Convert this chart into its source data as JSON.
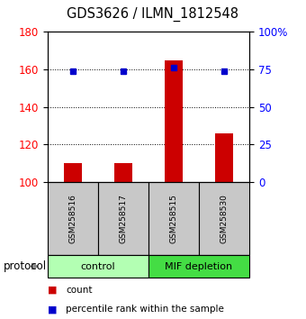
{
  "title": "GDS3626 / ILMN_1812548",
  "samples": [
    "GSM258516",
    "GSM258517",
    "GSM258515",
    "GSM258530"
  ],
  "counts": [
    110,
    110,
    165,
    126
  ],
  "percentile_ranks": [
    73.5,
    73.5,
    76,
    74
  ],
  "ylim_left": [
    100,
    180
  ],
  "ylim_right": [
    0,
    100
  ],
  "yticks_left": [
    100,
    120,
    140,
    160,
    180
  ],
  "yticks_right": [
    0,
    25,
    50,
    75,
    100
  ],
  "ytick_labels_right": [
    "0",
    "25",
    "50",
    "75",
    "100%"
  ],
  "groups": [
    {
      "label": "control",
      "samples": [
        0,
        1
      ],
      "color": "#b3ffb3"
    },
    {
      "label": "MIF depletion",
      "samples": [
        2,
        3
      ],
      "color": "#44dd44"
    }
  ],
  "bar_color": "#cc0000",
  "dot_color": "#0000cc",
  "bar_width": 0.35,
  "sample_box_color": "#c8c8c8",
  "protocol_label": "protocol",
  "legend_count": "count",
  "legend_pct": "percentile rank within the sample",
  "title_fontsize": 10.5,
  "tick_fontsize": 8.5,
  "sample_fontsize": 6.5,
  "group_fontsize": 8,
  "legend_fontsize": 7.5,
  "protocol_fontsize": 8.5
}
